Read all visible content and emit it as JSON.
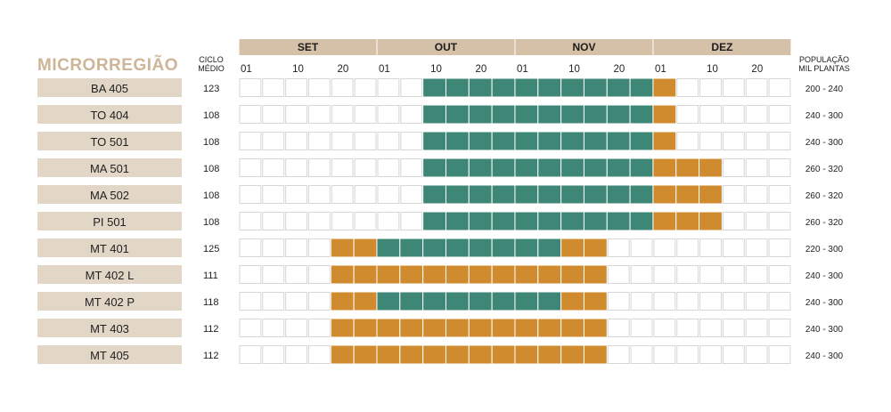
{
  "title": "MICRORREGIÃO",
  "ciclo_header": [
    "CICLO",
    "MÉDIO"
  ],
  "populacao_header": [
    "POPULAÇÃO",
    "MIL PLANTAS"
  ],
  "colors": {
    "header_bg": "#d5c1a8",
    "label_bg": "#e2d6c6",
    "title": "#cdb597",
    "green": "#3e8776",
    "orange": "#cf8b2e",
    "empty_border": "#d6d6d6"
  },
  "chart_data": {
    "type": "table",
    "months": [
      {
        "name": "SET",
        "ticks": [
          "01",
          "10",
          "20"
        ]
      },
      {
        "name": "OUT",
        "ticks": [
          "01",
          "10",
          "20"
        ]
      },
      {
        "name": "NOV",
        "ticks": [
          "01",
          "10",
          "20"
        ]
      },
      {
        "name": "DEZ",
        "ticks": [
          "01",
          "10",
          "20"
        ]
      }
    ],
    "cells_per_month": 6,
    "rows": [
      {
        "region": "BA 405",
        "ciclo": "123",
        "populacao": "200 - 240",
        "orange_before": [],
        "green": [
          8,
          18
        ],
        "orange_after": [
          18,
          19
        ]
      },
      {
        "region": "TO 404",
        "ciclo": "108",
        "populacao": "240 - 300",
        "orange_before": [],
        "green": [
          8,
          18
        ],
        "orange_after": [
          18,
          19
        ]
      },
      {
        "region": "TO 501",
        "ciclo": "108",
        "populacao": "240 - 300",
        "orange_before": [],
        "green": [
          8,
          18
        ],
        "orange_after": [
          18,
          19
        ]
      },
      {
        "region": "MA 501",
        "ciclo": "108",
        "populacao": "260 - 320",
        "orange_before": [],
        "green": [
          8,
          18
        ],
        "orange_after": [
          18,
          21
        ]
      },
      {
        "region": "MA 502",
        "ciclo": "108",
        "populacao": "260 - 320",
        "orange_before": [],
        "green": [
          8,
          18
        ],
        "orange_after": [
          18,
          21
        ]
      },
      {
        "region": "PI 501",
        "ciclo": "108",
        "populacao": "260 - 320",
        "orange_before": [],
        "green": [
          8,
          18
        ],
        "orange_after": [
          18,
          21
        ]
      },
      {
        "region": "MT 401",
        "ciclo": "125",
        "populacao": "220 - 300",
        "orange_before": [
          4,
          6
        ],
        "green": [
          6,
          14
        ],
        "orange_after": [
          14,
          16
        ]
      },
      {
        "region": "MT 402 L",
        "ciclo": "111",
        "populacao": "240 - 300",
        "orange_before": [
          4,
          16
        ],
        "green": [],
        "orange_after": []
      },
      {
        "region": "MT 402 P",
        "ciclo": "118",
        "populacao": "240 - 300",
        "orange_before": [
          4,
          6
        ],
        "green": [
          6,
          14
        ],
        "orange_after": [
          14,
          16
        ]
      },
      {
        "region": "MT 403",
        "ciclo": "112",
        "populacao": "240 - 300",
        "orange_before": [
          4,
          16
        ],
        "green": [],
        "orange_after": []
      },
      {
        "region": "MT 405",
        "ciclo": "112",
        "populacao": "240 - 300",
        "orange_before": [
          4,
          16
        ],
        "green": [],
        "orange_after": []
      }
    ]
  }
}
